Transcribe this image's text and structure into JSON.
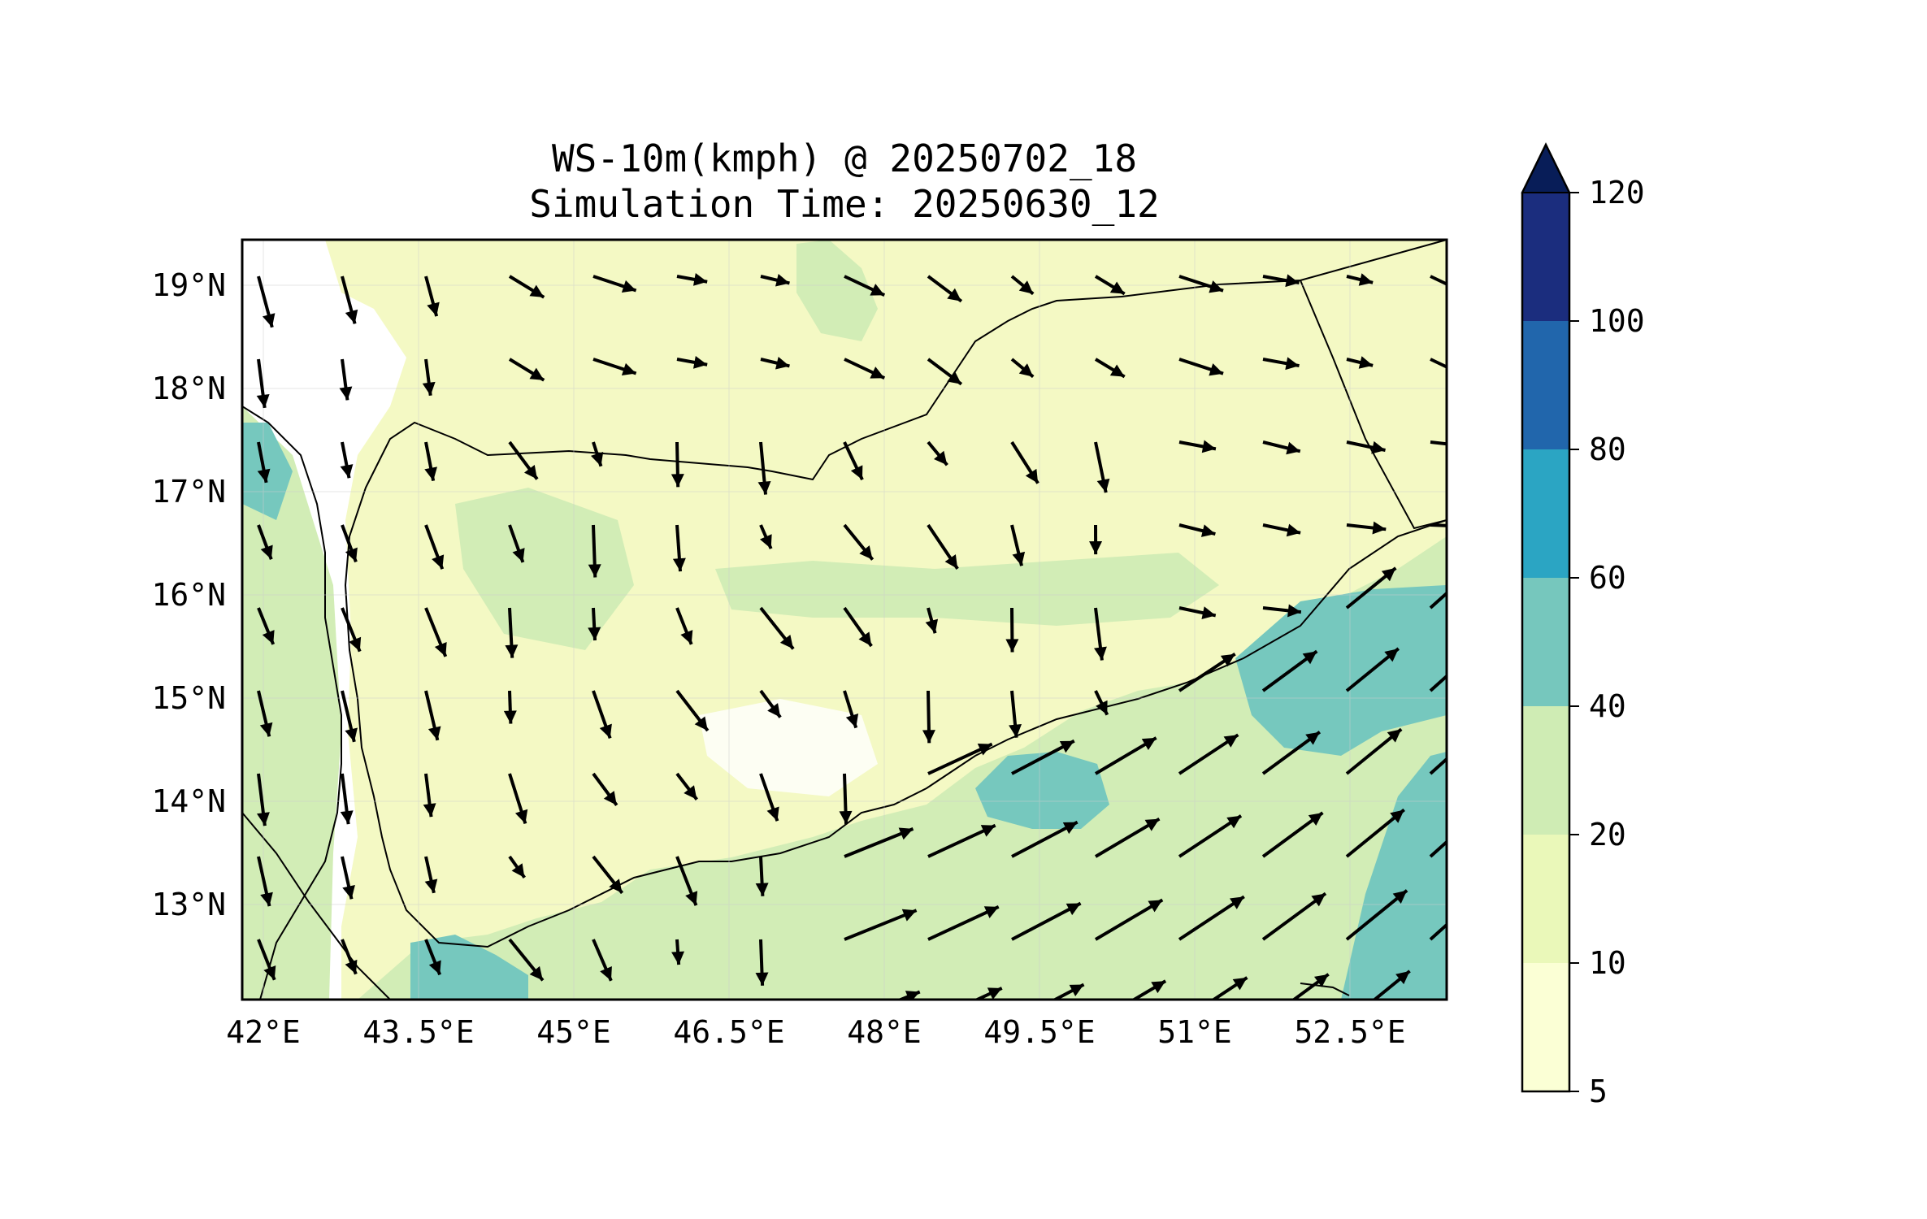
{
  "title": {
    "line1": "WS-10m(kmph) @ 20250702_18",
    "line2": "Simulation Time: 20250630_12"
  },
  "map": {
    "x_ticks": [
      "42°E",
      "43.5°E",
      "45°E",
      "46.5°E",
      "48°E",
      "49.5°E",
      "51°E",
      "52.5°E"
    ],
    "y_ticks": [
      "19°N",
      "18°N",
      "17°N",
      "16°N",
      "15°N",
      "14°N",
      "13°N"
    ],
    "colors": {
      "water": "#ffffff",
      "land_low": "#f4f9c4",
      "land_mid": "#d2edb6",
      "teal": "#76c8be",
      "border": "#000000"
    }
  },
  "colorbar": {
    "labels": [
      "5",
      "10",
      "20",
      "40",
      "60",
      "80",
      "100",
      "120"
    ],
    "colors": [
      "#fbffd5",
      "#eaf8b9",
      "#cfecb4",
      "#76c7bd",
      "#2ba5c3",
      "#2166ac",
      "#1b2d7e"
    ],
    "extend_color": "#081d58"
  }
}
